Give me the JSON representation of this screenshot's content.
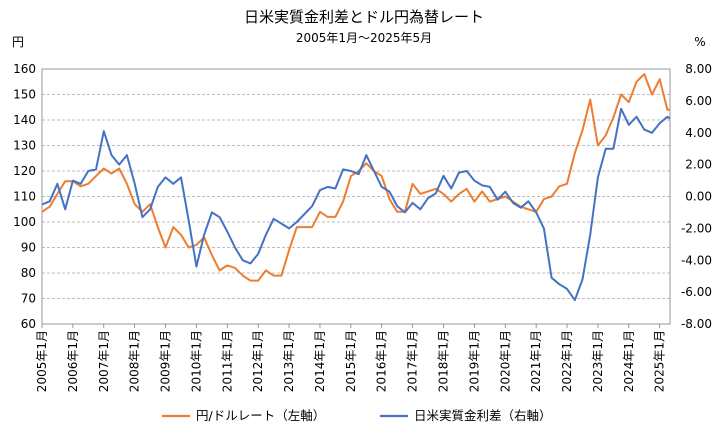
{
  "chart_data": {
    "type": "line",
    "title": "日米実質金利差とドル円為替レート",
    "subtitle": "2005年1月～2025年5月",
    "y_left_unit": "円",
    "y_right_unit": "%",
    "y_left": {
      "range": [
        60,
        160
      ],
      "ticks": [
        "60",
        "70",
        "80",
        "90",
        "100",
        "110",
        "120",
        "130",
        "140",
        "150",
        "160"
      ]
    },
    "y_right": {
      "range": [
        -8,
        8
      ],
      "ticks": [
        "-8.00",
        "-6.00",
        "-4.00",
        "-2.00",
        "0.00",
        "2.00",
        "4.00",
        "6.00",
        "8.00"
      ]
    },
    "x_start": "2005-01",
    "x_end": "2025-05",
    "x_ticks": [
      "2005年1月",
      "2006年1月",
      "2007年1月",
      "2008年1月",
      "2009年1月",
      "2010年1月",
      "2011年1月",
      "2012年1月",
      "2013年1月",
      "2014年1月",
      "2015年1月",
      "2016年1月",
      "2017年1月",
      "2018年1月",
      "2019年1月",
      "2020年1月",
      "2021年1月",
      "2022年1月",
      "2023年1月",
      "2024年1月",
      "2025年1月"
    ],
    "grid": true,
    "legend_position": "bottom",
    "series": [
      {
        "name": "円/ドルレート（左軸）",
        "axis": "left",
        "color": "#ED7D31",
        "points": [
          [
            "2005-01",
            104
          ],
          [
            "2005-04",
            106
          ],
          [
            "2005-07",
            111
          ],
          [
            "2005-10",
            116
          ],
          [
            "2006-01",
            116
          ],
          [
            "2006-04",
            114
          ],
          [
            "2006-07",
            115
          ],
          [
            "2006-10",
            118
          ],
          [
            "2007-01",
            121
          ],
          [
            "2007-04",
            119
          ],
          [
            "2007-07",
            121
          ],
          [
            "2007-10",
            115
          ],
          [
            "2008-01",
            107
          ],
          [
            "2008-04",
            104
          ],
          [
            "2008-07",
            107
          ],
          [
            "2008-10",
            98
          ],
          [
            "2009-01",
            90
          ],
          [
            "2009-04",
            98
          ],
          [
            "2009-07",
            95
          ],
          [
            "2009-10",
            90
          ],
          [
            "2010-01",
            91
          ],
          [
            "2010-04",
            94
          ],
          [
            "2010-07",
            87
          ],
          [
            "2010-10",
            81
          ],
          [
            "2011-01",
            83
          ],
          [
            "2011-04",
            82
          ],
          [
            "2011-07",
            79
          ],
          [
            "2011-10",
            77
          ],
          [
            "2012-01",
            77
          ],
          [
            "2012-04",
            81
          ],
          [
            "2012-07",
            79
          ],
          [
            "2012-10",
            79
          ],
          [
            "2013-01",
            89
          ],
          [
            "2013-04",
            98
          ],
          [
            "2013-07",
            98
          ],
          [
            "2013-10",
            98
          ],
          [
            "2014-01",
            104
          ],
          [
            "2014-04",
            102
          ],
          [
            "2014-07",
            102
          ],
          [
            "2014-10",
            108
          ],
          [
            "2015-01",
            118
          ],
          [
            "2015-04",
            120
          ],
          [
            "2015-07",
            123
          ],
          [
            "2015-10",
            120
          ],
          [
            "2016-01",
            118
          ],
          [
            "2016-04",
            109
          ],
          [
            "2016-07",
            104
          ],
          [
            "2016-10",
            104
          ],
          [
            "2017-01",
            115
          ],
          [
            "2017-04",
            111
          ],
          [
            "2017-07",
            112
          ],
          [
            "2017-10",
            113
          ],
          [
            "2018-01",
            111
          ],
          [
            "2018-04",
            108
          ],
          [
            "2018-07",
            111
          ],
          [
            "2018-10",
            113
          ],
          [
            "2019-01",
            108
          ],
          [
            "2019-04",
            112
          ],
          [
            "2019-07",
            108
          ],
          [
            "2019-10",
            109
          ],
          [
            "2020-01",
            110
          ],
          [
            "2020-04",
            108
          ],
          [
            "2020-07",
            106
          ],
          [
            "2020-10",
            105
          ],
          [
            "2021-01",
            104
          ],
          [
            "2021-04",
            109
          ],
          [
            "2021-07",
            110
          ],
          [
            "2021-10",
            114
          ],
          [
            "2022-01",
            115
          ],
          [
            "2022-04",
            127
          ],
          [
            "2022-07",
            136
          ],
          [
            "2022-10",
            148
          ],
          [
            "2023-01",
            130
          ],
          [
            "2023-04",
            134
          ],
          [
            "2023-07",
            141
          ],
          [
            "2023-10",
            150
          ],
          [
            "2024-01",
            147
          ],
          [
            "2024-04",
            155
          ],
          [
            "2024-07",
            158
          ],
          [
            "2024-10",
            150
          ],
          [
            "2025-01",
            156
          ],
          [
            "2025-04",
            144
          ],
          [
            "2025-05",
            144
          ]
        ]
      },
      {
        "name": "日米実質金利差（右軸）",
        "axis": "right",
        "color": "#4472C4",
        "points": [
          [
            "2005-01",
            -0.5
          ],
          [
            "2005-04",
            -0.3
          ],
          [
            "2005-07",
            0.8
          ],
          [
            "2005-10",
            -0.8
          ],
          [
            "2006-01",
            1.0
          ],
          [
            "2006-04",
            0.8
          ],
          [
            "2006-07",
            1.6
          ],
          [
            "2006-10",
            1.7
          ],
          [
            "2007-01",
            4.1
          ],
          [
            "2007-04",
            2.6
          ],
          [
            "2007-07",
            2.0
          ],
          [
            "2007-10",
            2.6
          ],
          [
            "2008-01",
            0.8
          ],
          [
            "2008-04",
            -1.3
          ],
          [
            "2008-07",
            -0.8
          ],
          [
            "2008-10",
            0.6
          ],
          [
            "2009-01",
            1.2
          ],
          [
            "2009-04",
            0.8
          ],
          [
            "2009-07",
            1.2
          ],
          [
            "2009-10",
            -1.5
          ],
          [
            "2010-01",
            -4.4
          ],
          [
            "2010-04",
            -2.4
          ],
          [
            "2010-07",
            -1.0
          ],
          [
            "2010-10",
            -1.3
          ],
          [
            "2011-01",
            -2.2
          ],
          [
            "2011-04",
            -3.2
          ],
          [
            "2011-07",
            -4.0
          ],
          [
            "2011-10",
            -4.2
          ],
          [
            "2012-01",
            -3.6
          ],
          [
            "2012-04",
            -2.4
          ],
          [
            "2012-07",
            -1.4
          ],
          [
            "2012-10",
            -1.7
          ],
          [
            "2013-01",
            -2.0
          ],
          [
            "2013-04",
            -1.6
          ],
          [
            "2013-07",
            -1.1
          ],
          [
            "2013-10",
            -0.6
          ],
          [
            "2014-01",
            0.4
          ],
          [
            "2014-04",
            0.6
          ],
          [
            "2014-07",
            0.5
          ],
          [
            "2014-10",
            1.7
          ],
          [
            "2015-01",
            1.6
          ],
          [
            "2015-04",
            1.4
          ],
          [
            "2015-07",
            2.6
          ],
          [
            "2015-10",
            1.6
          ],
          [
            "2016-01",
            0.6
          ],
          [
            "2016-04",
            0.3
          ],
          [
            "2016-07",
            -0.6
          ],
          [
            "2016-10",
            -1.0
          ],
          [
            "2017-01",
            -0.4
          ],
          [
            "2017-04",
            -0.8
          ],
          [
            "2017-07",
            -0.1
          ],
          [
            "2017-10",
            0.2
          ],
          [
            "2018-01",
            1.3
          ],
          [
            "2018-04",
            0.5
          ],
          [
            "2018-07",
            1.5
          ],
          [
            "2018-10",
            1.6
          ],
          [
            "2019-01",
            1.0
          ],
          [
            "2019-04",
            0.7
          ],
          [
            "2019-07",
            0.6
          ],
          [
            "2019-10",
            -0.2
          ],
          [
            "2020-01",
            0.3
          ],
          [
            "2020-04",
            -0.4
          ],
          [
            "2020-07",
            -0.7
          ],
          [
            "2020-10",
            -0.3
          ],
          [
            "2021-01",
            -1.0
          ],
          [
            "2021-04",
            -2.0
          ],
          [
            "2021-07",
            -5.1
          ],
          [
            "2021-10",
            -5.5
          ],
          [
            "2022-01",
            -5.8
          ],
          [
            "2022-04",
            -6.5
          ],
          [
            "2022-07",
            -5.2
          ],
          [
            "2022-10",
            -2.4
          ],
          [
            "2023-01",
            1.2
          ],
          [
            "2023-04",
            3.0
          ],
          [
            "2023-07",
            3.0
          ],
          [
            "2023-10",
            5.5
          ],
          [
            "2024-01",
            4.5
          ],
          [
            "2024-04",
            5.0
          ],
          [
            "2024-07",
            4.2
          ],
          [
            "2024-10",
            4.0
          ],
          [
            "2025-01",
            4.6
          ],
          [
            "2025-04",
            5.0
          ],
          [
            "2025-05",
            4.9
          ]
        ]
      }
    ]
  }
}
